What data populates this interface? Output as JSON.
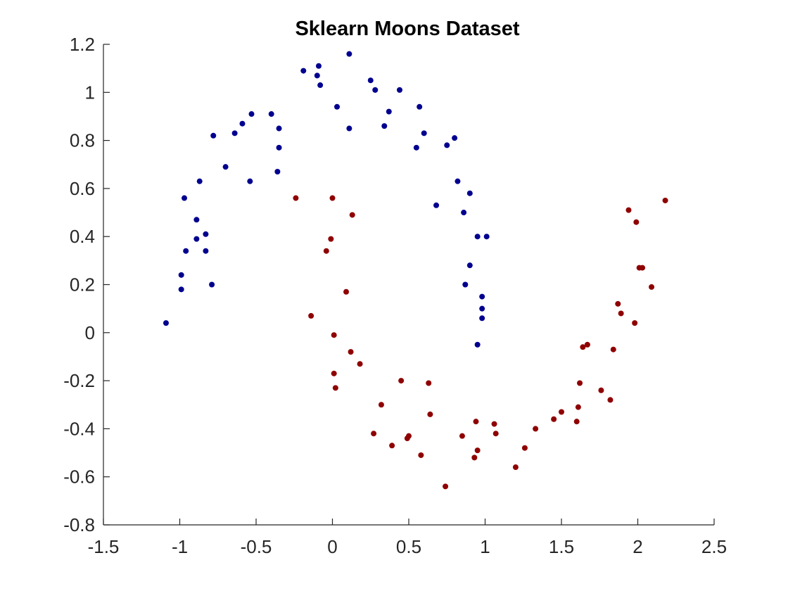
{
  "chart_data": {
    "type": "scatter",
    "title": "Sklearn Moons Dataset",
    "xlabel": "",
    "ylabel": "",
    "xlim": [
      -1.5,
      2.5
    ],
    "ylim": [
      -0.8,
      1.2
    ],
    "xticks": [
      -1.5,
      -1,
      -0.5,
      0,
      0.5,
      1,
      1.5,
      2,
      2.5
    ],
    "yticks": [
      -0.8,
      -0.6,
      -0.4,
      -0.2,
      0,
      0.2,
      0.4,
      0.6,
      0.8,
      1,
      1.2
    ],
    "xtick_labels": [
      "-1.5",
      "-1",
      "-0.5",
      "0",
      "0.5",
      "1",
      "1.5",
      "2",
      "2.5"
    ],
    "ytick_labels": [
      "-0.8",
      "-0.6",
      "-0.4",
      "-0.2",
      "0",
      "0.2",
      "0.4",
      "0.6",
      "0.8",
      "1",
      "1.2"
    ],
    "grid": false,
    "legend": "none",
    "series": [
      {
        "color": "#00008F",
        "points": [
          [
            0.11,
            1.16
          ],
          [
            -0.19,
            1.09
          ],
          [
            -0.09,
            1.11
          ],
          [
            -0.1,
            1.07
          ],
          [
            -0.08,
            1.03
          ],
          [
            0.03,
            0.94
          ],
          [
            0.25,
            1.05
          ],
          [
            0.28,
            1.01
          ],
          [
            0.44,
            1.01
          ],
          [
            0.37,
            0.92
          ],
          [
            0.34,
            0.86
          ],
          [
            0.11,
            0.85
          ],
          [
            0.57,
            0.94
          ],
          [
            0.6,
            0.83
          ],
          [
            0.55,
            0.77
          ],
          [
            0.75,
            0.78
          ],
          [
            0.8,
            0.81
          ],
          [
            0.82,
            0.63
          ],
          [
            0.9,
            0.58
          ],
          [
            0.68,
            0.53
          ],
          [
            0.86,
            0.5
          ],
          [
            0.95,
            0.4
          ],
          [
            1.01,
            0.4
          ],
          [
            0.9,
            0.28
          ],
          [
            0.87,
            0.2
          ],
          [
            0.98,
            0.15
          ],
          [
            0.98,
            0.1
          ],
          [
            0.98,
            0.06
          ],
          [
            0.95,
            -0.05
          ],
          [
            -0.4,
            0.91
          ],
          [
            -0.53,
            0.91
          ],
          [
            -0.59,
            0.87
          ],
          [
            -0.64,
            0.83
          ],
          [
            -0.78,
            0.82
          ],
          [
            -0.35,
            0.85
          ],
          [
            -0.35,
            0.77
          ],
          [
            -0.7,
            0.69
          ],
          [
            -0.36,
            0.67
          ],
          [
            -0.54,
            0.63
          ],
          [
            -0.87,
            0.63
          ],
          [
            -0.97,
            0.56
          ],
          [
            -0.89,
            0.47
          ],
          [
            -0.83,
            0.41
          ],
          [
            -0.89,
            0.39
          ],
          [
            -0.83,
            0.34
          ],
          [
            -0.96,
            0.34
          ],
          [
            -0.99,
            0.24
          ],
          [
            -0.99,
            0.18
          ],
          [
            -0.79,
            0.2
          ],
          [
            -1.09,
            0.04
          ]
        ]
      },
      {
        "color": "#8F0000",
        "points": [
          [
            -0.24,
            0.56
          ],
          [
            0.0,
            0.56
          ],
          [
            0.13,
            0.49
          ],
          [
            -0.01,
            0.39
          ],
          [
            -0.04,
            0.34
          ],
          [
            0.09,
            0.17
          ],
          [
            -0.14,
            0.07
          ],
          [
            0.01,
            -0.01
          ],
          [
            0.12,
            -0.08
          ],
          [
            0.18,
            -0.13
          ],
          [
            0.01,
            -0.17
          ],
          [
            0.02,
            -0.23
          ],
          [
            0.45,
            -0.2
          ],
          [
            0.63,
            -0.21
          ],
          [
            0.32,
            -0.3
          ],
          [
            0.64,
            -0.34
          ],
          [
            0.27,
            -0.42
          ],
          [
            0.39,
            -0.47
          ],
          [
            0.5,
            -0.43
          ],
          [
            0.49,
            -0.44
          ],
          [
            0.58,
            -0.51
          ],
          [
            0.74,
            -0.64
          ],
          [
            0.85,
            -0.43
          ],
          [
            0.94,
            -0.37
          ],
          [
            0.95,
            -0.49
          ],
          [
            0.93,
            -0.52
          ],
          [
            1.06,
            -0.38
          ],
          [
            1.07,
            -0.42
          ],
          [
            1.2,
            -0.56
          ],
          [
            1.26,
            -0.48
          ],
          [
            1.33,
            -0.4
          ],
          [
            1.45,
            -0.36
          ],
          [
            1.5,
            -0.33
          ],
          [
            1.6,
            -0.37
          ],
          [
            1.61,
            -0.31
          ],
          [
            1.62,
            -0.21
          ],
          [
            1.64,
            -0.06
          ],
          [
            1.67,
            -0.05
          ],
          [
            1.76,
            -0.24
          ],
          [
            1.82,
            -0.28
          ],
          [
            1.84,
            -0.07
          ],
          [
            1.87,
            0.12
          ],
          [
            1.89,
            0.08
          ],
          [
            1.98,
            0.04
          ],
          [
            2.01,
            0.27
          ],
          [
            2.03,
            0.27
          ],
          [
            2.09,
            0.19
          ],
          [
            1.94,
            0.51
          ],
          [
            1.99,
            0.46
          ],
          [
            2.18,
            0.55
          ]
        ]
      }
    ]
  }
}
